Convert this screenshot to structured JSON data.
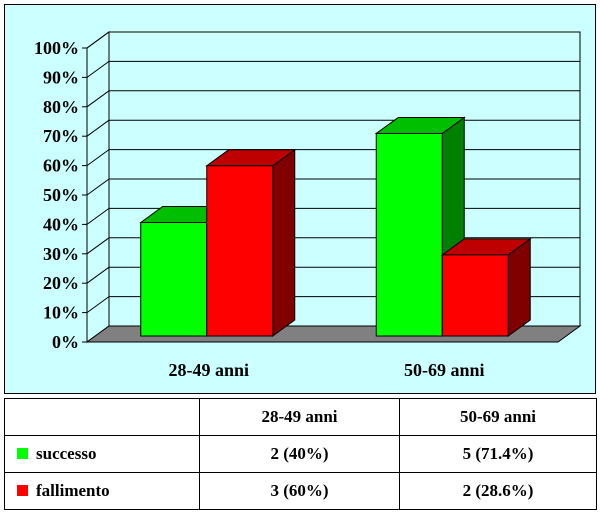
{
  "chart_data": {
    "type": "bar",
    "categories": [
      "28-49 anni",
      "50-69 anni"
    ],
    "series": [
      {
        "name": "successo",
        "color": "#00ff00",
        "values": [
          40,
          71.4
        ],
        "labels": [
          "2 (40%)",
          "5 (71.4%)"
        ]
      },
      {
        "name": "fallimento",
        "color": "#ff0000",
        "values": [
          60,
          28.6
        ],
        "labels": [
          "3 (60%)",
          "2 (28.6%)"
        ]
      }
    ],
    "y_ticks": [
      "0%",
      "10%",
      "20%",
      "30%",
      "40%",
      "50%",
      "60%",
      "70%",
      "80%",
      "90%",
      "100%"
    ],
    "ylim": [
      0,
      100
    ],
    "grid": true,
    "legend": "table-below",
    "three_d": true
  },
  "table": {
    "header": [
      "",
      "28-49 anni",
      "50-69 anni"
    ]
  }
}
